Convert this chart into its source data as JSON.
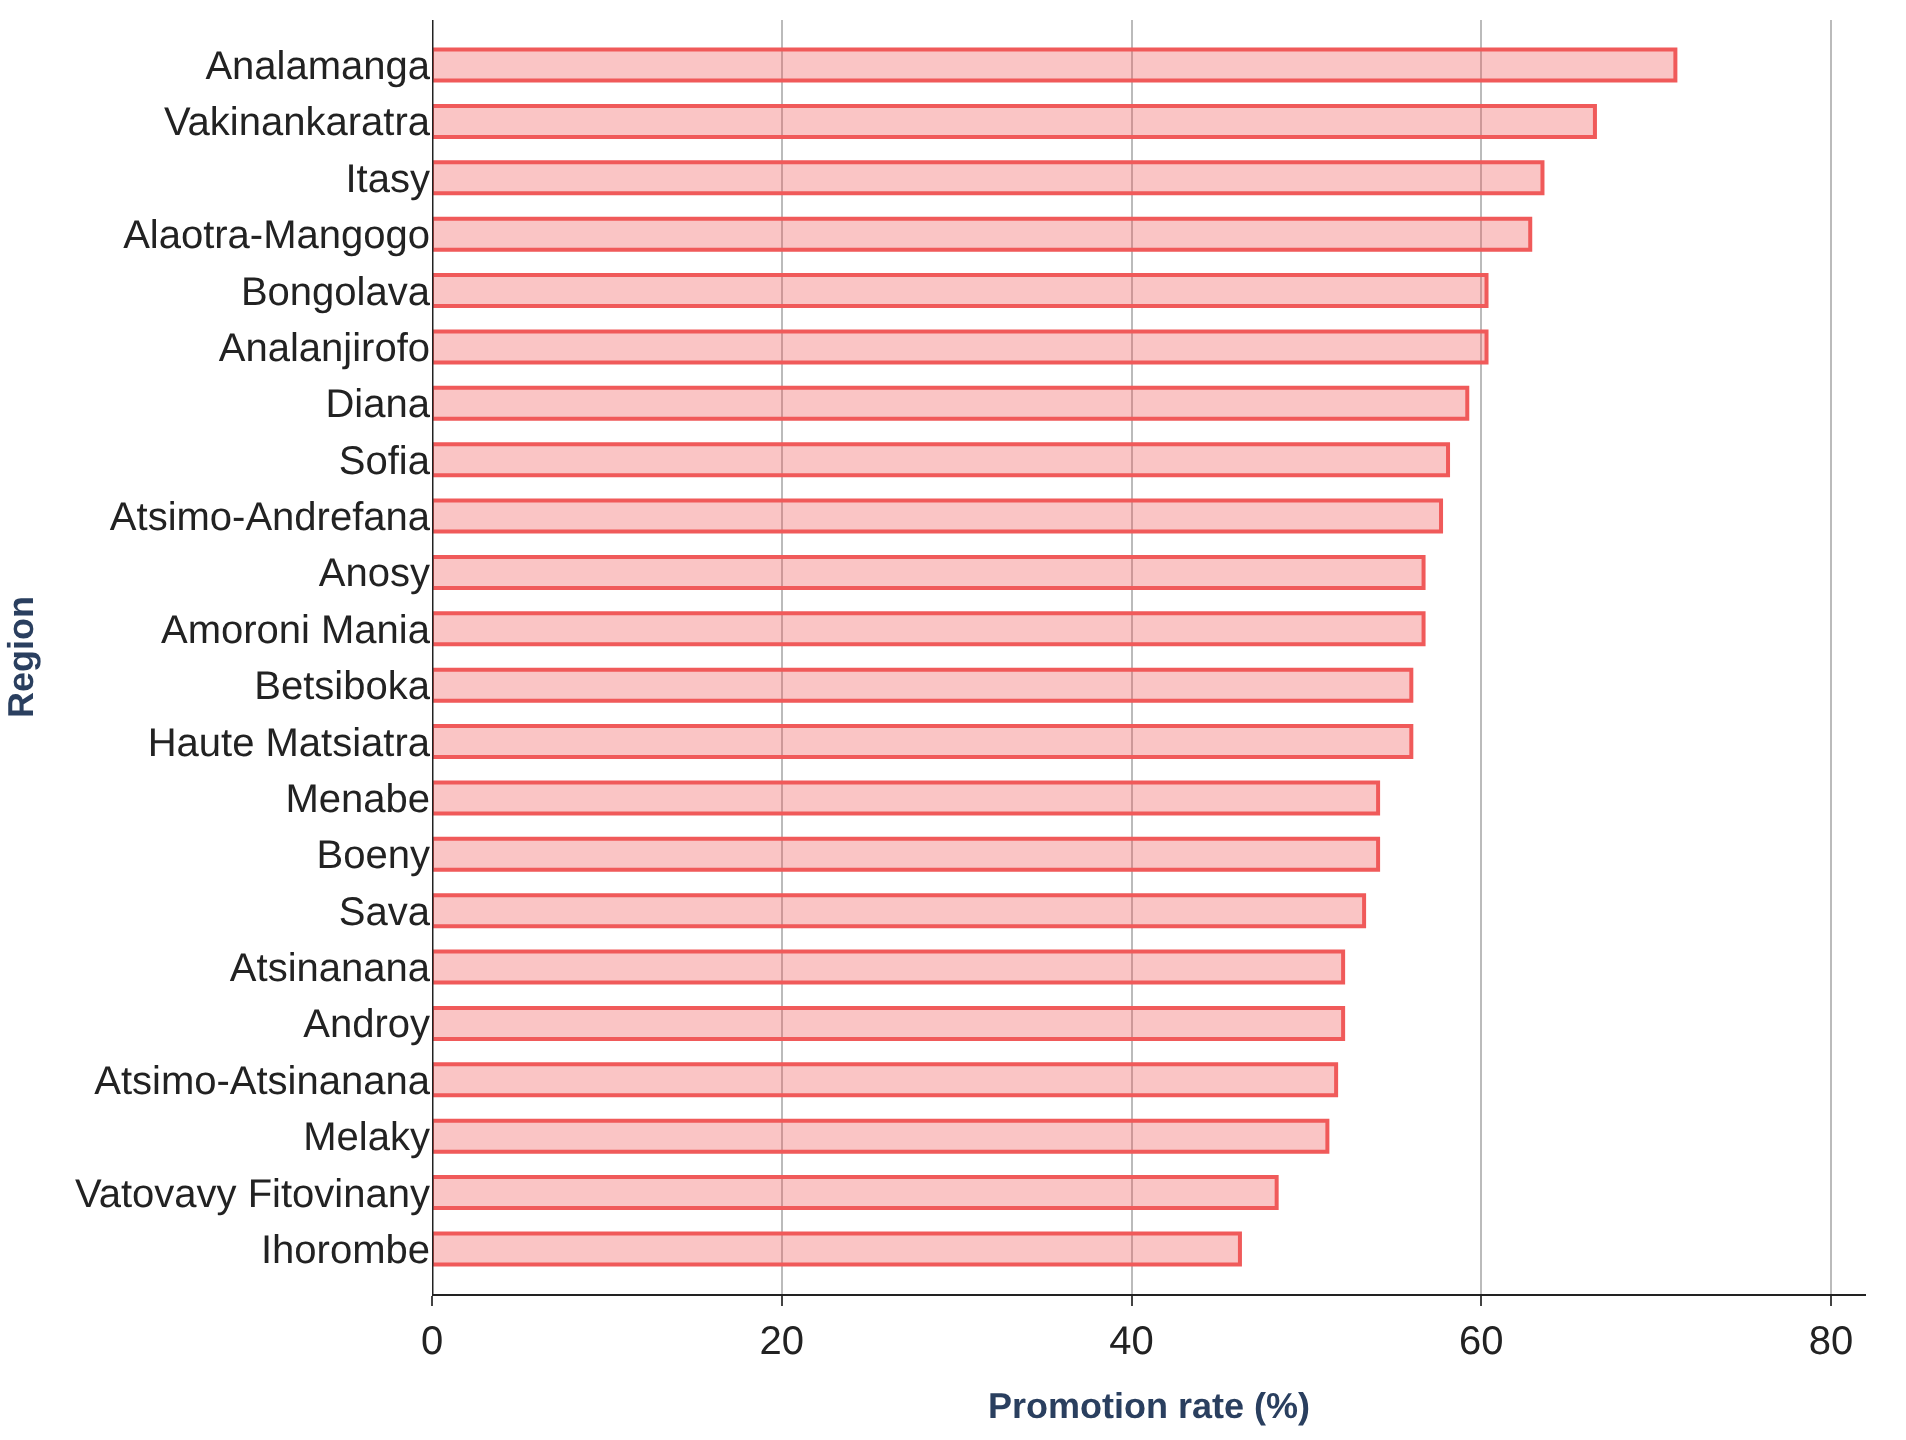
{
  "chart_data": {
    "type": "bar",
    "orientation": "horizontal",
    "xlabel": "Promotion rate (%)",
    "ylabel": "Region",
    "categories": [
      "Analamanga",
      "Vakinankaratra",
      "Itasy",
      "Alaotra-Mangogo",
      "Bongolava",
      "Analanjirofo",
      "Diana",
      "Sofia",
      "Atsimo-Andrefana",
      "Anosy",
      "Amoroni Mania",
      "Betsiboka",
      "Haute Matsiatra",
      "Menabe",
      "Boeny",
      "Sava",
      "Atsinanana",
      "Androy",
      "Atsimo-Atsinanana",
      "Melaky",
      "Vatovavy Fitovinany",
      "Ihorombe"
    ],
    "values": [
      71.1,
      66.5,
      63.5,
      62.8,
      60.3,
      60.3,
      59.2,
      58.1,
      57.7,
      56.7,
      56.7,
      56.0,
      56.0,
      54.1,
      54.1,
      53.3,
      52.1,
      52.1,
      51.7,
      51.2,
      48.3,
      46.2
    ],
    "color": "#f05a5a",
    "xlim": [
      0,
      82
    ],
    "xticks": [
      0,
      20,
      40,
      60,
      80
    ],
    "grid": "x"
  }
}
